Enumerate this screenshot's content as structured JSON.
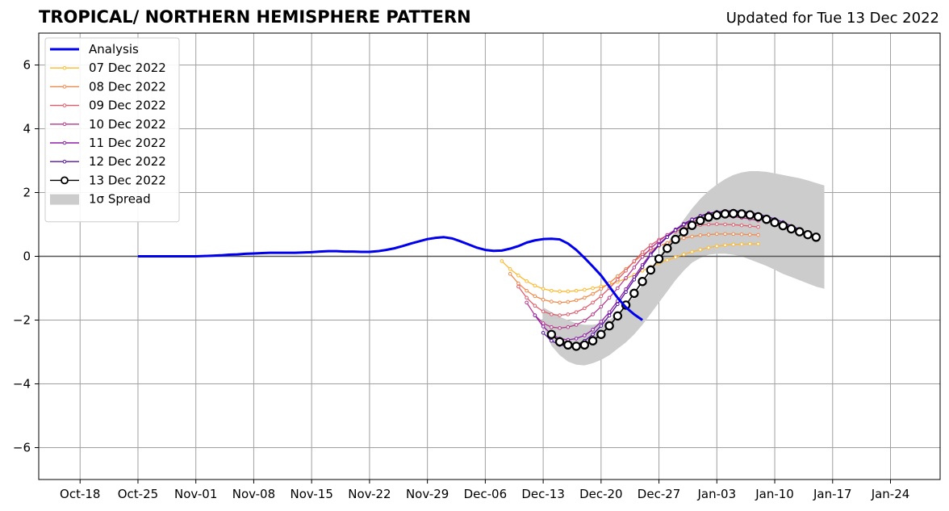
{
  "header": {
    "title": "TROPICAL/ NORTHERN HEMISPHERE PATTERN",
    "updated": "Updated for Tue 13 Dec 2022"
  },
  "chart_data": {
    "type": "line",
    "x_unit": "date",
    "xlim": [
      "2022-10-13",
      "2023-01-30"
    ],
    "ylim": [
      -7,
      7
    ],
    "x_ticks": [
      {
        "date": "2022-10-18",
        "label": "Oct-18"
      },
      {
        "date": "2022-10-25",
        "label": "Oct-25"
      },
      {
        "date": "2022-11-01",
        "label": "Nov-01"
      },
      {
        "date": "2022-11-08",
        "label": "Nov-08"
      },
      {
        "date": "2022-11-15",
        "label": "Nov-15"
      },
      {
        "date": "2022-11-22",
        "label": "Nov-22"
      },
      {
        "date": "2022-11-29",
        "label": "Nov-29"
      },
      {
        "date": "2022-12-06",
        "label": "Dec-06"
      },
      {
        "date": "2022-12-13",
        "label": "Dec-13"
      },
      {
        "date": "2022-12-20",
        "label": "Dec-20"
      },
      {
        "date": "2022-12-27",
        "label": "Dec-27"
      },
      {
        "date": "2023-01-03",
        "label": "Jan-03"
      },
      {
        "date": "2023-01-10",
        "label": "Jan-10"
      },
      {
        "date": "2023-01-17",
        "label": "Jan-17"
      },
      {
        "date": "2023-01-24",
        "label": "Jan-24"
      }
    ],
    "y_ticks": [
      {
        "value": -6,
        "label": "−6"
      },
      {
        "value": -4,
        "label": "−4"
      },
      {
        "value": -2,
        "label": "−2"
      },
      {
        "value": 0,
        "label": "0"
      },
      {
        "value": 2,
        "label": "2"
      },
      {
        "value": 4,
        "label": "4"
      },
      {
        "value": 6,
        "label": "6"
      }
    ],
    "grid": true,
    "zero_line": true,
    "legend_position": "top-left",
    "analysis": {
      "name": "Analysis",
      "color": "#0000ee",
      "start_date": "2022-10-25",
      "values": [
        0.0,
        0.0,
        0.0,
        0.0,
        0.0,
        0.0,
        0.0,
        0.0,
        0.01,
        0.02,
        0.03,
        0.05,
        0.06,
        0.08,
        0.09,
        0.1,
        0.11,
        0.11,
        0.11,
        0.11,
        0.12,
        0.13,
        0.15,
        0.16,
        0.16,
        0.15,
        0.15,
        0.14,
        0.14,
        0.16,
        0.2,
        0.25,
        0.32,
        0.4,
        0.47,
        0.54,
        0.58,
        0.6,
        0.56,
        0.47,
        0.37,
        0.27,
        0.2,
        0.17,
        0.18,
        0.24,
        0.32,
        0.43,
        0.5,
        0.54,
        0.55,
        0.53,
        0.4,
        0.2,
        -0.05,
        -0.32,
        -0.6,
        -0.95,
        -1.3,
        -1.6,
        -1.82,
        -2.0
      ]
    },
    "spread": {
      "name": "1σ Spread",
      "color": "#cccccc",
      "start_date": "2022-12-13",
      "upper": [
        -1.6,
        -1.75,
        -1.9,
        -2.0,
        -2.1,
        -2.15,
        -2.15,
        -2.1,
        -2.0,
        -1.8,
        -1.55,
        -1.25,
        -0.9,
        -0.5,
        -0.05,
        0.4,
        0.8,
        1.15,
        1.5,
        1.8,
        2.05,
        2.25,
        2.42,
        2.55,
        2.63,
        2.67,
        2.67,
        2.65,
        2.6,
        2.55,
        2.5,
        2.45,
        2.38,
        2.3,
        2.22
      ],
      "lower": [
        -2.2,
        -2.8,
        -3.1,
        -3.3,
        -3.4,
        -3.42,
        -3.35,
        -3.25,
        -3.1,
        -2.9,
        -2.7,
        -2.45,
        -2.15,
        -1.8,
        -1.45,
        -1.1,
        -0.75,
        -0.45,
        -0.2,
        -0.05,
        0.05,
        0.08,
        0.08,
        0.05,
        0.0,
        -0.1,
        -0.2,
        -0.3,
        -0.42,
        -0.55,
        -0.65,
        -0.75,
        -0.85,
        -0.95,
        -1.02
      ]
    },
    "series": [
      {
        "name": "07 Dec 2022",
        "color": "#fdb92f",
        "start_date": "2022-12-08",
        "values": [
          -0.15,
          -0.4,
          -0.6,
          -0.78,
          -0.92,
          -1.02,
          -1.08,
          -1.1,
          -1.1,
          -1.08,
          -1.05,
          -1.0,
          -0.95,
          -0.88,
          -0.8,
          -0.7,
          -0.58,
          -0.45,
          -0.33,
          -0.22,
          -0.12,
          -0.03,
          0.06,
          0.14,
          0.21,
          0.27,
          0.32,
          0.35,
          0.37,
          0.38,
          0.39,
          0.39
        ]
      },
      {
        "name": "08 Dec 2022",
        "color": "#f0884a",
        "start_date": "2022-12-09",
        "values": [
          -0.55,
          -0.85,
          -1.08,
          -1.25,
          -1.36,
          -1.42,
          -1.45,
          -1.43,
          -1.38,
          -1.3,
          -1.18,
          -1.02,
          -0.84,
          -0.62,
          -0.4,
          -0.17,
          0.05,
          0.2,
          0.32,
          0.42,
          0.5,
          0.57,
          0.62,
          0.66,
          0.68,
          0.7,
          0.7,
          0.7,
          0.69,
          0.68,
          0.67
        ]
      },
      {
        "name": "09 Dec 2022",
        "color": "#de5c6d",
        "start_date": "2022-12-10",
        "values": [
          -0.95,
          -1.3,
          -1.55,
          -1.73,
          -1.82,
          -1.85,
          -1.82,
          -1.75,
          -1.63,
          -1.45,
          -1.25,
          -1.0,
          -0.73,
          -0.45,
          -0.15,
          0.13,
          0.35,
          0.52,
          0.66,
          0.78,
          0.87,
          0.94,
          0.98,
          1.0,
          1.01,
          1.0,
          0.99,
          0.97,
          0.95,
          0.92
        ]
      },
      {
        "name": "10 Dec 2022",
        "color": "#b7398e",
        "start_date": "2022-12-11",
        "values": [
          -1.45,
          -1.85,
          -2.1,
          -2.22,
          -2.25,
          -2.22,
          -2.15,
          -2.02,
          -1.82,
          -1.58,
          -1.3,
          -1.0,
          -0.68,
          -0.35,
          -0.02,
          0.25,
          0.48,
          0.67,
          0.84,
          0.98,
          1.08,
          1.16,
          1.21,
          1.24,
          1.25,
          1.24,
          1.21,
          1.17,
          1.12
        ]
      },
      {
        "name": "11 Dec 2022",
        "color": "#8f1fa8",
        "start_date": "2022-12-12",
        "values": [
          -1.85,
          -2.2,
          -2.45,
          -2.58,
          -2.62,
          -2.58,
          -2.48,
          -2.3,
          -2.05,
          -1.75,
          -1.4,
          -1.03,
          -0.65,
          -0.27,
          0.08,
          0.38,
          0.62,
          0.84,
          1.02,
          1.16,
          1.27,
          1.35,
          1.39,
          1.41,
          1.41,
          1.38,
          1.34,
          1.28,
          1.2,
          1.1,
          0.98
        ]
      },
      {
        "name": "12 Dec 2022",
        "color": "#56139e",
        "start_date": "2022-12-13",
        "values": [
          -2.4,
          -2.65,
          -2.78,
          -2.82,
          -2.78,
          -2.65,
          -2.45,
          -2.18,
          -1.86,
          -1.5,
          -1.12,
          -0.73,
          -0.34,
          0.04,
          0.35,
          0.6,
          0.82,
          1.0,
          1.15,
          1.26,
          1.34,
          1.39,
          1.42,
          1.43,
          1.41,
          1.38,
          1.33,
          1.25,
          1.17,
          1.07,
          0.95,
          0.85
        ]
      },
      {
        "name": "13 Dec 2022",
        "color": "#000000",
        "start_date": "2022-12-14",
        "values": [
          -2.45,
          -2.68,
          -2.78,
          -2.82,
          -2.78,
          -2.65,
          -2.45,
          -2.18,
          -1.87,
          -1.53,
          -1.16,
          -0.79,
          -0.43,
          -0.08,
          0.25,
          0.53,
          0.77,
          0.97,
          1.12,
          1.23,
          1.29,
          1.33,
          1.34,
          1.33,
          1.3,
          1.24,
          1.16,
          1.06,
          0.96,
          0.86,
          0.77,
          0.68,
          0.6
        ]
      }
    ]
  }
}
